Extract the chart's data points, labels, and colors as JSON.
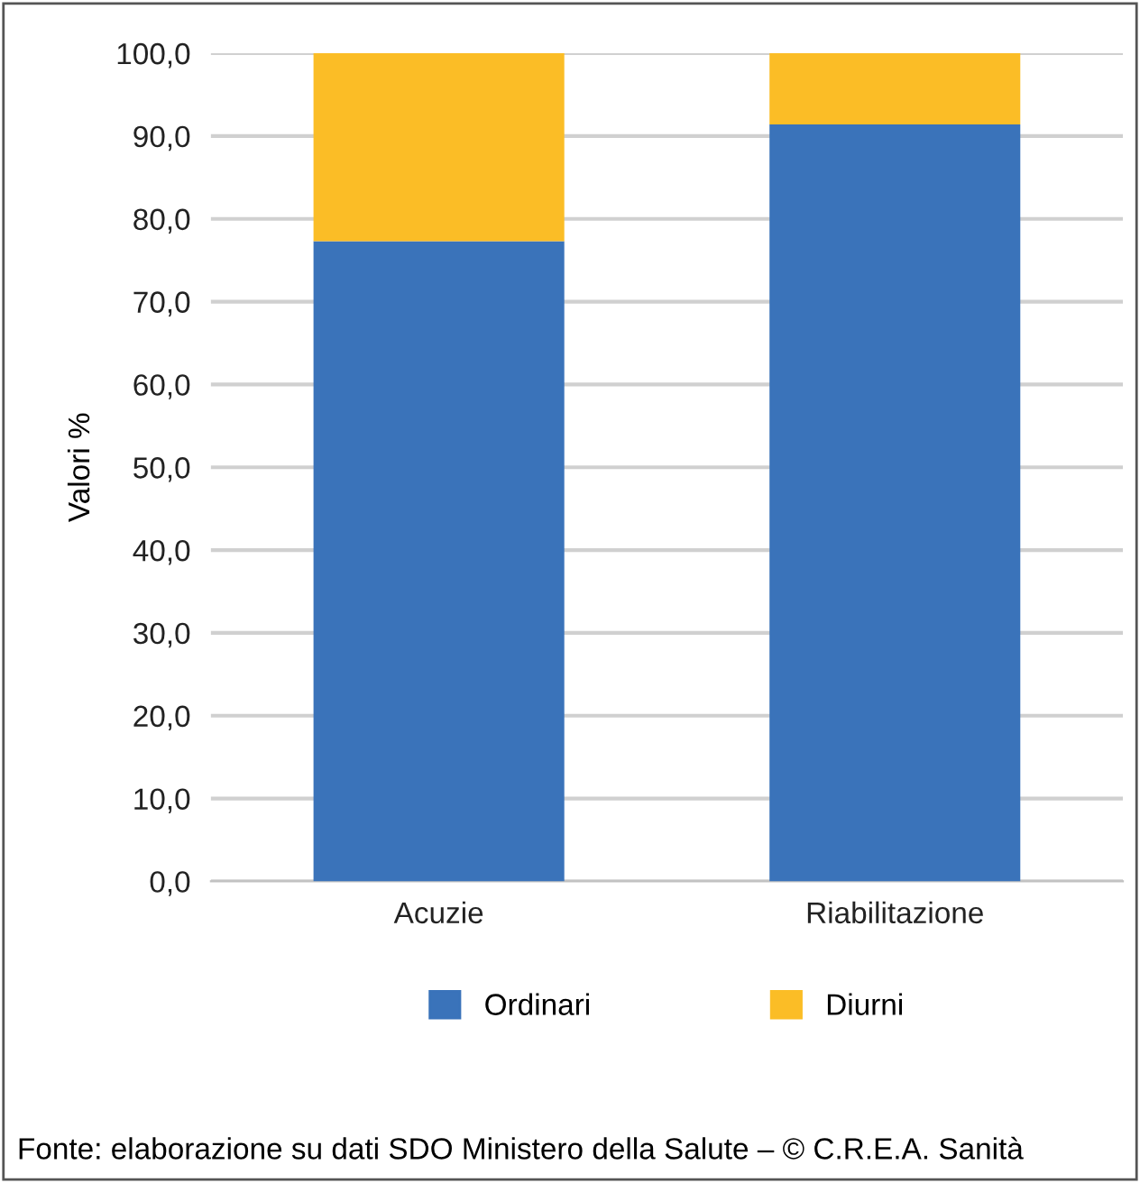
{
  "chart_data": {
    "type": "bar",
    "stacked": true,
    "ylabel": "Valori %",
    "categories": [
      "Acuzie",
      "Riabilitazione"
    ],
    "series": [
      {
        "name": "Ordinari",
        "color": "#3a73ba",
        "values": [
          77.3,
          91.4
        ]
      },
      {
        "name": "Diurni",
        "color": "#fbbd26",
        "values": [
          22.7,
          8.6
        ]
      }
    ],
    "ylim": [
      0,
      100
    ],
    "yticks": [
      {
        "value": 0,
        "label": "0,0"
      },
      {
        "value": 10,
        "label": "10,0"
      },
      {
        "value": 20,
        "label": "20,0"
      },
      {
        "value": 30,
        "label": "30,0"
      },
      {
        "value": 40,
        "label": "40,0"
      },
      {
        "value": 50,
        "label": "50,0"
      },
      {
        "value": 60,
        "label": "60,0"
      },
      {
        "value": 70,
        "label": "70,0"
      },
      {
        "value": 80,
        "label": "80,0"
      },
      {
        "value": 90,
        "label": "90,0"
      },
      {
        "value": 100,
        "label": "100,0"
      }
    ],
    "grid": "y",
    "legend": "bottom",
    "annotations": [
      "Fonte: elaborazione su dati SDO Ministero della Salute – © C.R.E.A. Sanità"
    ]
  }
}
